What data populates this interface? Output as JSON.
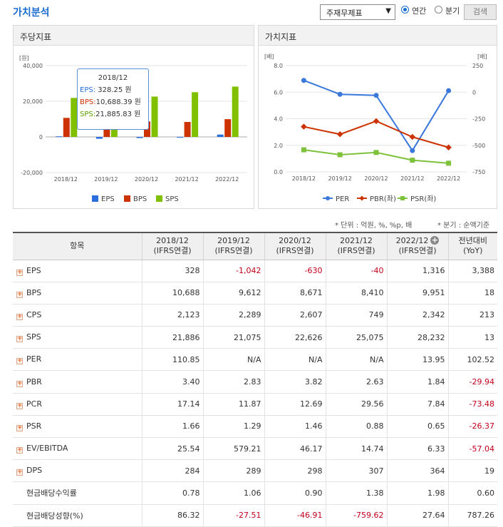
{
  "header": {
    "title": "가치분석",
    "select_value": "주재무제표",
    "radio_annual": "연간",
    "radio_quarter": "분기",
    "search_button": "검색"
  },
  "left_panel": {
    "title": "주당지표",
    "unit": "[원]",
    "tooltip": {
      "title": "2018/12",
      "eps": "EPS:",
      "eps_val": "328.25 원",
      "bps": "BPS:",
      "bps_val": "10,688.39 원",
      "sps": "SPS:",
      "sps_val": "21,885.83 원"
    }
  },
  "right_panel": {
    "title": "가치지표",
    "unit_left": "[배]",
    "unit_right": "[배]"
  },
  "colors": {
    "eps": "#2a6fdb",
    "bps": "#cc3300",
    "sps": "#80c000",
    "per": "#3a78dc",
    "pbr": "#cc3300",
    "psr": "#7ec13a",
    "accent": "#1a6bd0",
    "negative": "#c3001a"
  },
  "chart_data": [
    {
      "type": "bar",
      "title": "주당지표",
      "ylabel": "[원]",
      "categories": [
        "2018/12",
        "2019/12",
        "2020/12",
        "2021/12",
        "2022/12"
      ],
      "ylim": [
        -20000,
        40000
      ],
      "yticks": [
        "40,000",
        "20,000",
        "0",
        "-20,000"
      ],
      "series": [
        {
          "name": "EPS",
          "values": [
            328,
            -1042,
            -630,
            -40,
            1316
          ]
        },
        {
          "name": "BPS",
          "values": [
            10688,
            9612,
            8671,
            8410,
            9951
          ]
        },
        {
          "name": "SPS",
          "values": [
            21886,
            21075,
            22626,
            25075,
            28232
          ]
        }
      ],
      "legend": "bottom",
      "grid": true
    },
    {
      "type": "line",
      "title": "가치지표",
      "categories": [
        "2018/12",
        "2019/12",
        "2020/12",
        "2021/12",
        "2022/12"
      ],
      "ylim_left": [
        0,
        8
      ],
      "yticks_left": [
        "8.0",
        "6.0",
        "4.0",
        "2.0",
        "0.0"
      ],
      "ylim_right": [
        -750,
        250
      ],
      "yticks_right": [
        "250",
        "0",
        "-250",
        "-500",
        "-750"
      ],
      "series": [
        {
          "name": "PER",
          "axis": "right",
          "values": [
            110.85,
            -20,
            -30,
            -550,
            13.95
          ]
        },
        {
          "name": "PBR(좌)",
          "axis": "left",
          "values": [
            3.4,
            2.83,
            3.82,
            2.63,
            1.84
          ]
        },
        {
          "name": "PSR(좌)",
          "axis": "left",
          "values": [
            1.66,
            1.29,
            1.46,
            0.88,
            0.65
          ]
        }
      ],
      "legend": "bottom",
      "grid": true
    }
  ],
  "notes": {
    "unit": "* 단위 : 억원, %, %p, 배",
    "basis": "* 분기 : 순액기준"
  },
  "table": {
    "headers": [
      {
        "a": "항목",
        "b": ""
      },
      {
        "a": "2018/12",
        "b": "(IFRS연결)"
      },
      {
        "a": "2019/12",
        "b": "(IFRS연결)"
      },
      {
        "a": "2020/12",
        "b": "(IFRS연결)"
      },
      {
        "a": "2021/12",
        "b": "(IFRS연결)"
      },
      {
        "a": "2022/12",
        "b": "(IFRS연결)"
      },
      {
        "a": "전년대비",
        "b": "(YoY)"
      }
    ],
    "rows": [
      {
        "label": "EPS",
        "values": [
          "328",
          "-1,042",
          "-630",
          "-40",
          "1,316",
          "3,388"
        ]
      },
      {
        "label": "BPS",
        "values": [
          "10,688",
          "9,612",
          "8,671",
          "8,410",
          "9,951",
          "18"
        ]
      },
      {
        "label": "CPS",
        "values": [
          "2,123",
          "2,289",
          "2,607",
          "749",
          "2,342",
          "213"
        ]
      },
      {
        "label": "SPS",
        "values": [
          "21,886",
          "21,075",
          "22,626",
          "25,075",
          "28,232",
          "13"
        ]
      },
      {
        "label": "PER",
        "values": [
          "110.85",
          "N/A",
          "N/A",
          "N/A",
          "13.95",
          "102.52"
        ]
      },
      {
        "label": "PBR",
        "values": [
          "3.40",
          "2.83",
          "3.82",
          "2.63",
          "1.84",
          "-29.94"
        ]
      },
      {
        "label": "PCR",
        "values": [
          "17.14",
          "11.87",
          "12.69",
          "29.56",
          "7.84",
          "-73.48"
        ]
      },
      {
        "label": "PSR",
        "values": [
          "1.66",
          "1.29",
          "1.46",
          "0.88",
          "0.65",
          "-26.37"
        ]
      },
      {
        "label": "EV/EBITDA",
        "values": [
          "25.54",
          "579.21",
          "46.17",
          "14.74",
          "6.33",
          "-57.04"
        ]
      },
      {
        "label": "DPS",
        "values": [
          "284",
          "289",
          "298",
          "307",
          "364",
          "19"
        ]
      },
      {
        "label": "현금배당수익률",
        "values": [
          "0.78",
          "1.06",
          "0.90",
          "1.38",
          "1.98",
          "0.60"
        ]
      },
      {
        "label": "현금배당성향(%)",
        "values": [
          "86.32",
          "-27.51",
          "-46.91",
          "-759.62",
          "27.64",
          "787.26"
        ]
      }
    ]
  }
}
